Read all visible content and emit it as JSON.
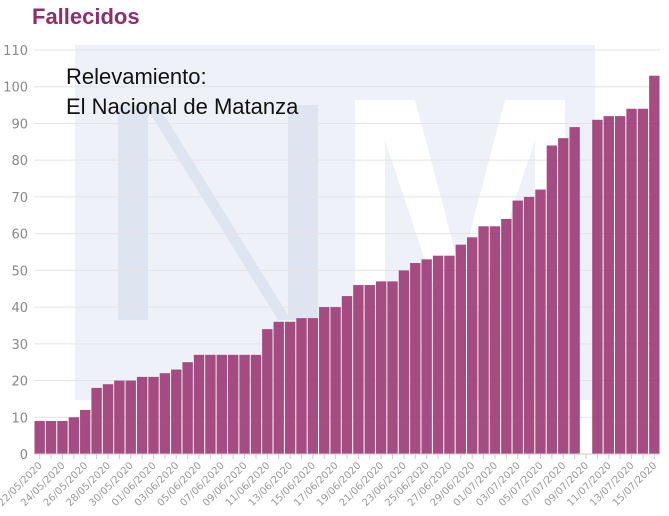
{
  "chart_data": {
    "type": "bar",
    "title": "Fallecidos",
    "annotation": [
      "Relevamiento:",
      "El Nacional de Matanza"
    ],
    "xlabel": "",
    "ylabel": "",
    "ylim": [
      0,
      110
    ],
    "yticks": [
      0,
      10,
      20,
      30,
      40,
      50,
      60,
      70,
      80,
      90,
      100,
      110
    ],
    "grid": true,
    "color": "#9e3f78",
    "categories": [
      "22/05/2020",
      "23/05/2020",
      "24/05/2020",
      "25/05/2020",
      "26/05/2020",
      "27/05/2020",
      "28/05/2020",
      "29/05/2020",
      "30/05/2020",
      "31/05/2020",
      "01/06/2020",
      "02/06/2020",
      "03/06/2020",
      "04/06/2020",
      "05/06/2020",
      "06/06/2020",
      "07/06/2020",
      "08/06/2020",
      "09/06/2020",
      "10/06/2020",
      "11/06/2020",
      "12/06/2020",
      "13/06/2020",
      "14/06/2020",
      "15/06/2020",
      "16/06/2020",
      "17/06/2020",
      "18/06/2020",
      "19/06/2020",
      "20/06/2020",
      "21/06/2020",
      "22/06/2020",
      "23/06/2020",
      "24/06/2020",
      "25/06/2020",
      "26/06/2020",
      "27/06/2020",
      "28/06/2020",
      "29/06/2020",
      "30/06/2020",
      "01/07/2020",
      "02/07/2020",
      "03/07/2020",
      "04/07/2020",
      "05/07/2020",
      "06/07/2020",
      "07/07/2020",
      "08/07/2020",
      "09/07/2020",
      "10/07/2020",
      "11/07/2020",
      "12/07/2020",
      "13/07/2020",
      "14/07/2020",
      "15/07/2020"
    ],
    "values": [
      9,
      9,
      9,
      10,
      12,
      18,
      19,
      20,
      20,
      21,
      21,
      22,
      23,
      25,
      27,
      27,
      27,
      27,
      27,
      27,
      34,
      36,
      36,
      37,
      37,
      40,
      40,
      43,
      46,
      46,
      47,
      47,
      50,
      52,
      53,
      54,
      54,
      57,
      59,
      62,
      62,
      64,
      69,
      70,
      72,
      84,
      86,
      89,
      null,
      91,
      92,
      92,
      94,
      94,
      103
    ]
  }
}
